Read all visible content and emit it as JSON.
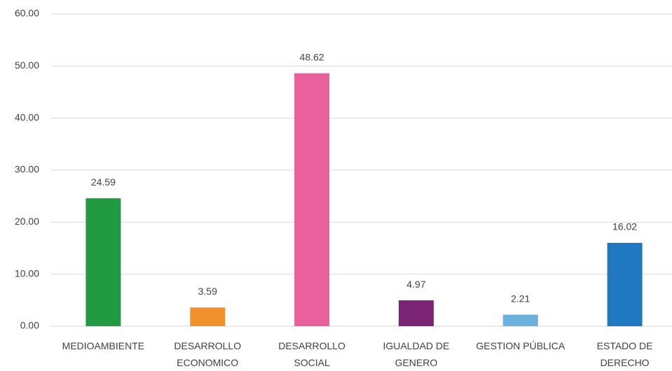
{
  "chart_data": {
    "type": "bar",
    "categories": [
      "MEDIOAMBIENTE",
      "DESARROLLO ECONOMICO",
      "DESARROLLO SOCIAL",
      "IGUALDAD DE GENERO",
      "GESTION PÚBLICA",
      "ESTADO DE DERECHO"
    ],
    "values": [
      24.59,
      3.59,
      48.62,
      4.97,
      2.21,
      16.02
    ],
    "colors": [
      "#229a43",
      "#f0912c",
      "#e8619d",
      "#7b2476",
      "#6cb0de",
      "#1f78c1"
    ],
    "ylim": [
      0,
      60
    ],
    "yticks": [
      {
        "value": 0,
        "label": "0.00"
      },
      {
        "value": 10,
        "label": "10.00"
      },
      {
        "value": 20,
        "label": "20.00"
      },
      {
        "value": 30,
        "label": "30.00"
      },
      {
        "value": 40,
        "label": "40.00"
      },
      {
        "value": 50,
        "label": "50.00"
      },
      {
        "value": 60,
        "label": "60.00"
      }
    ],
    "grid": true
  }
}
